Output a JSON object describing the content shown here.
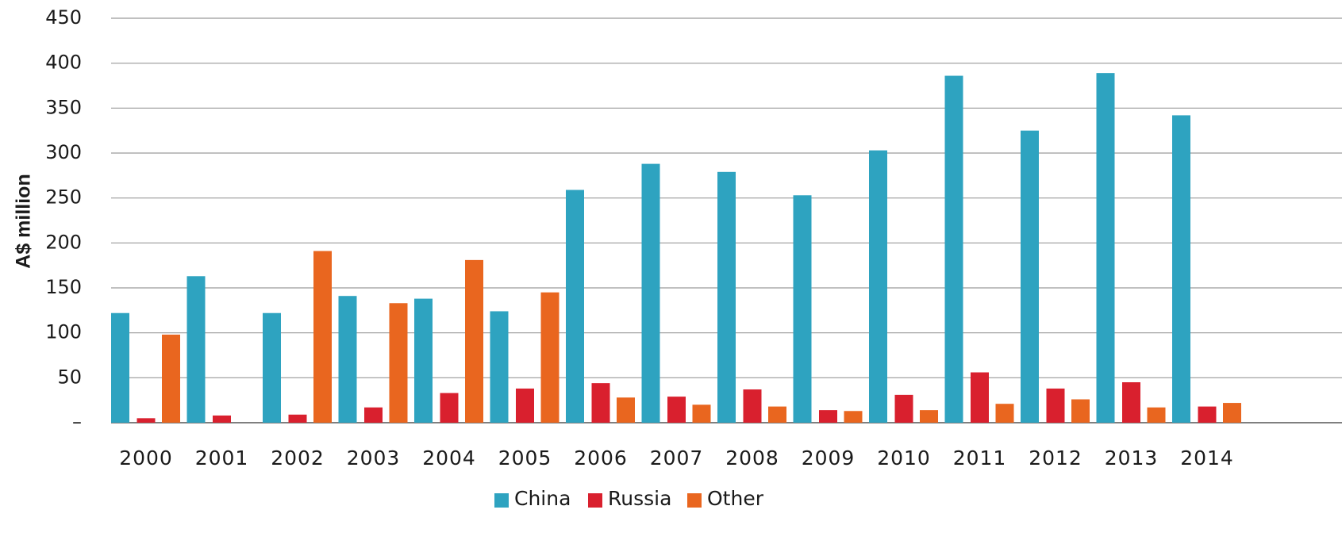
{
  "chart_data": {
    "type": "bar",
    "title": "",
    "xlabel": "",
    "ylabel": "A$ million",
    "ylim": [
      0,
      450
    ],
    "yticks": [
      0,
      50,
      100,
      150,
      200,
      250,
      300,
      350,
      400,
      450
    ],
    "ytick_labels": [
      "–",
      "50",
      "100",
      "150",
      "200",
      "250",
      "300",
      "350",
      "400",
      "450"
    ],
    "grid": true,
    "legend_position": "bottom",
    "categories": [
      "2000",
      "2001",
      "2002",
      "2003",
      "2004",
      "2005",
      "2006",
      "2007",
      "2008",
      "2009",
      "2010",
      "2011",
      "2012",
      "2013",
      "2014"
    ],
    "series": [
      {
        "name": "China",
        "color": "#2ea3c0",
        "values": [
          122,
          163,
          122,
          141,
          138,
          124,
          259,
          288,
          279,
          253,
          303,
          386,
          325,
          389,
          342
        ]
      },
      {
        "name": "Russia",
        "color": "#d9202e",
        "values": [
          5,
          8,
          9,
          17,
          33,
          38,
          44,
          29,
          37,
          14,
          31,
          56,
          38,
          45,
          18
        ]
      },
      {
        "name": "Other",
        "color": "#e9661f",
        "values": [
          98,
          0,
          191,
          133,
          181,
          145,
          28,
          20,
          18,
          13,
          14,
          21,
          26,
          17,
          22
        ]
      }
    ]
  }
}
